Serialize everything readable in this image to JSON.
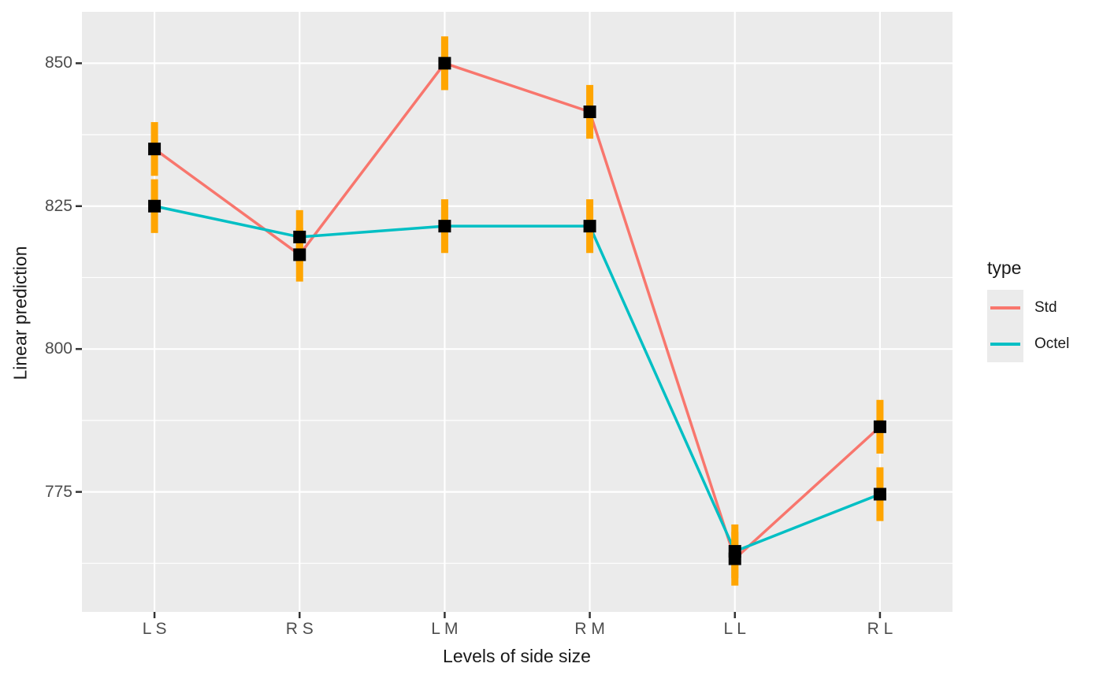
{
  "figure": {
    "background": "#FFFFFF",
    "panel_background": "#EBEBEB",
    "grid_color": "#FFFFFF",
    "tick_mark_color": "#333333",
    "tick_label_color": "#4D4D4D",
    "axis_title_color": "#1A1A1A"
  },
  "chart_data": {
    "type": "line",
    "title": "",
    "xlabel": "Levels of side size",
    "ylabel": "Linear prediction",
    "categories": [
      "L S",
      "R S",
      "L M",
      "R M",
      "L L",
      "R L"
    ],
    "y_ticks": [
      775,
      800,
      825,
      850
    ],
    "y_minor_gridlines": [
      762.5,
      787.5,
      812.5,
      837.5
    ],
    "ylim": [
      754,
      859
    ],
    "grid": "on",
    "error_bar_color": "#FFA500",
    "point_color": "#000000",
    "series": [
      {
        "name": "Std",
        "color": "#F8766D",
        "values": [
          835.0,
          816.5,
          850.0,
          841.5,
          763.3,
          786.4
        ],
        "ci_low": [
          830.3,
          811.8,
          845.3,
          836.8,
          758.6,
          781.7
        ],
        "ci_high": [
          839.7,
          821.2,
          854.7,
          846.2,
          768.0,
          791.1
        ]
      },
      {
        "name": "Octel",
        "color": "#00BFC4",
        "values": [
          825.0,
          819.6,
          821.5,
          821.5,
          764.6,
          774.6
        ],
        "ci_low": [
          820.3,
          814.9,
          816.8,
          816.8,
          759.9,
          769.9
        ],
        "ci_high": [
          829.7,
          824.3,
          826.2,
          826.2,
          769.3,
          779.3
        ]
      }
    ],
    "legend": {
      "title": "type",
      "position": "right",
      "entries": [
        "Std",
        "Octel"
      ]
    }
  }
}
